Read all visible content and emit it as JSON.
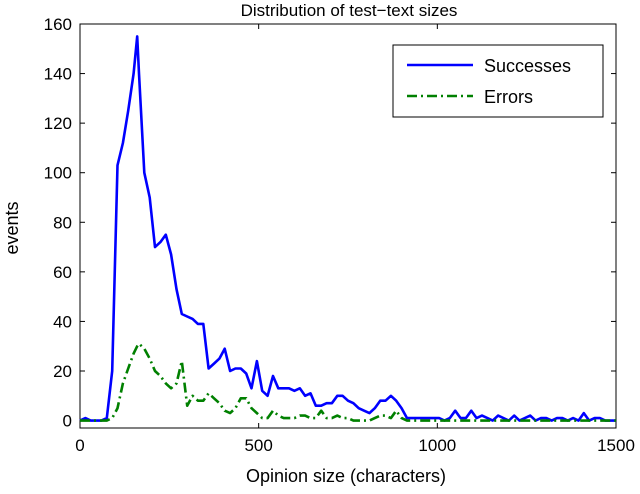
{
  "chart_data": {
    "type": "line",
    "title": "Distribution of test−text sizes",
    "xlabel": "Opinion size (characters)",
    "ylabel": "events",
    "xlim": [
      0,
      1500
    ],
    "ylim": [
      -3,
      160
    ],
    "xticks": [
      0,
      500,
      1000,
      1500
    ],
    "yticks": [
      0,
      20,
      40,
      60,
      80,
      100,
      120,
      140,
      160
    ],
    "grid": false,
    "legend_position": "top-right",
    "series": [
      {
        "name": "Successes",
        "color": "#0000ff",
        "style": "solid",
        "x": [
          0,
          15,
          30,
          45,
          60,
          75,
          90,
          105,
          120,
          135,
          150,
          160,
          165,
          180,
          195,
          210,
          225,
          240,
          255,
          270,
          285,
          300,
          315,
          330,
          345,
          360,
          375,
          390,
          405,
          420,
          435,
          450,
          465,
          480,
          495,
          510,
          525,
          540,
          555,
          570,
          585,
          600,
          615,
          630,
          645,
          660,
          675,
          690,
          705,
          720,
          735,
          750,
          765,
          780,
          795,
          810,
          825,
          840,
          855,
          870,
          885,
          900,
          915,
          930,
          945,
          960,
          975,
          990,
          1005,
          1020,
          1035,
          1050,
          1065,
          1080,
          1095,
          1110,
          1125,
          1140,
          1155,
          1170,
          1185,
          1200,
          1215,
          1230,
          1245,
          1260,
          1275,
          1290,
          1305,
          1320,
          1335,
          1350,
          1365,
          1380,
          1395,
          1410,
          1425,
          1440,
          1455,
          1470,
          1485,
          1500
        ],
        "y": [
          0,
          1,
          0,
          0,
          0,
          1,
          20,
          103,
          112,
          125,
          140,
          155,
          140,
          100,
          90,
          70,
          72,
          75,
          67,
          53,
          43,
          42,
          41,
          39,
          39,
          21,
          23,
          25,
          29,
          20,
          21,
          21,
          19,
          13,
          24,
          12,
          10,
          18,
          13,
          13,
          13,
          12,
          13,
          10,
          11,
          6,
          6,
          7,
          7,
          10,
          10,
          8,
          7,
          5,
          4,
          3,
          5,
          8,
          8,
          10,
          8,
          5,
          1,
          1,
          1,
          1,
          1,
          1,
          1,
          0,
          1,
          4,
          1,
          1,
          4,
          1,
          2,
          1,
          0,
          2,
          1,
          0,
          2,
          0,
          1,
          2,
          0,
          1,
          1,
          0,
          1,
          1,
          0,
          1,
          0,
          3,
          0,
          1,
          1,
          0,
          0,
          0
        ]
      },
      {
        "name": "Errors",
        "color": "#008000",
        "style": "dashdot",
        "x": [
          0,
          15,
          30,
          45,
          60,
          75,
          90,
          105,
          120,
          135,
          150,
          160,
          165,
          180,
          195,
          210,
          225,
          240,
          255,
          270,
          285,
          300,
          315,
          330,
          345,
          360,
          375,
          390,
          405,
          420,
          435,
          450,
          465,
          480,
          495,
          510,
          525,
          540,
          555,
          570,
          585,
          600,
          615,
          630,
          645,
          660,
          675,
          690,
          705,
          720,
          735,
          750,
          765,
          780,
          795,
          810,
          825,
          840,
          855,
          870,
          885,
          900,
          915,
          930,
          945,
          960,
          975,
          990,
          1005,
          1020,
          1035,
          1050,
          1065,
          1080,
          1095,
          1110,
          1125,
          1140,
          1155,
          1170,
          1185,
          1200,
          1215,
          1230,
          1245,
          1260,
          1275,
          1290,
          1305,
          1320,
          1335,
          1350,
          1365,
          1380,
          1395,
          1410,
          1425,
          1440,
          1455,
          1470,
          1485,
          1500
        ],
        "y": [
          0,
          0,
          0,
          0,
          0,
          0,
          1,
          5,
          15,
          21,
          27,
          30,
          31,
          29,
          25,
          20,
          18,
          15,
          13,
          15,
          24,
          6,
          10,
          8,
          8,
          11,
          9,
          7,
          4,
          3,
          5,
          9,
          9,
          5,
          3,
          1,
          1,
          4,
          2,
          1,
          1,
          1,
          2,
          2,
          1,
          1,
          4,
          1,
          1,
          2,
          1,
          1,
          0,
          0,
          0,
          0,
          1,
          2,
          2,
          1,
          4,
          1,
          0,
          0,
          0,
          0,
          0,
          0,
          0,
          0,
          0,
          0,
          0,
          0,
          0,
          0,
          0,
          0,
          0,
          0,
          0,
          0,
          0,
          0,
          0,
          0,
          0,
          0,
          0,
          0,
          0,
          0,
          0,
          0,
          0,
          0,
          0,
          0,
          0,
          0,
          0,
          0
        ]
      }
    ]
  }
}
